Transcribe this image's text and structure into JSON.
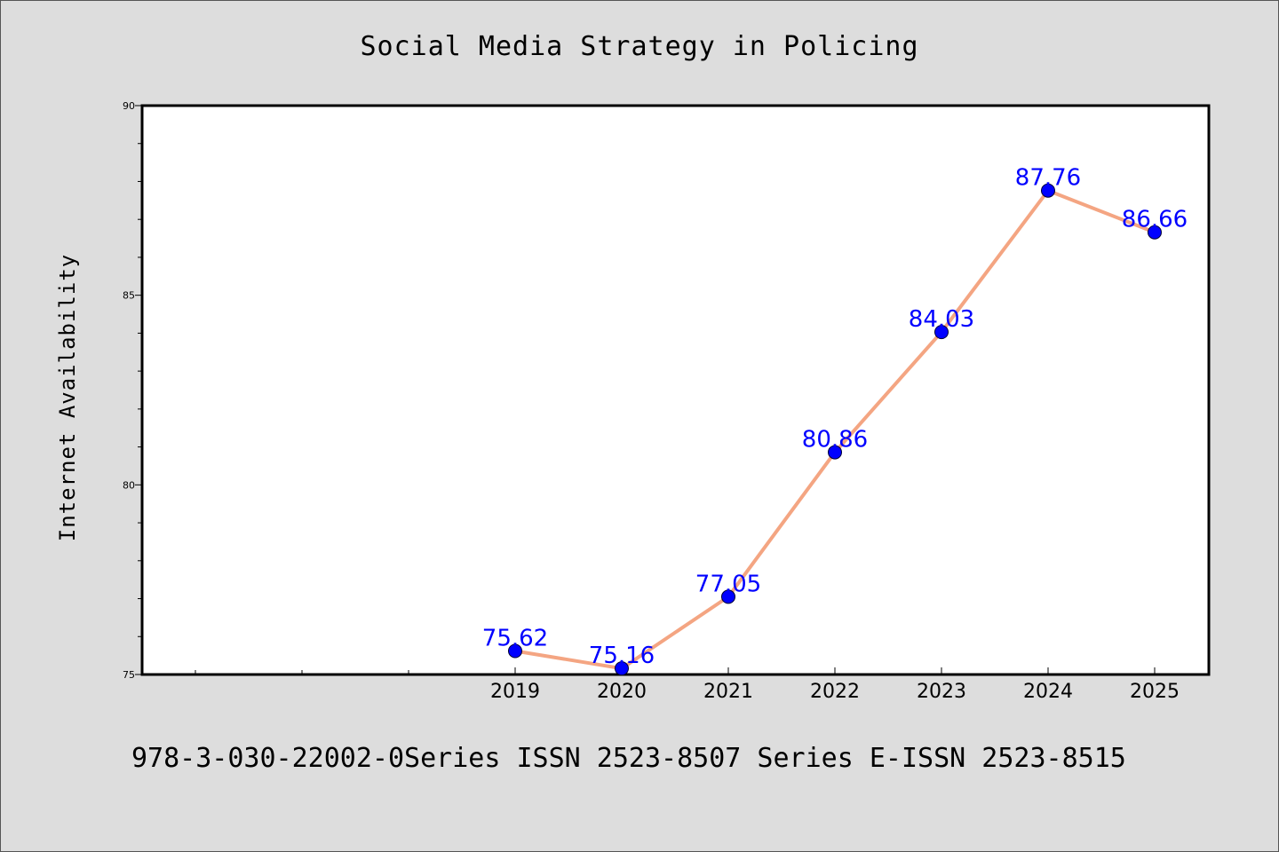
{
  "chart_data": {
    "type": "line",
    "title": "Social Media Strategy in Policing",
    "ylabel": "Internet Availability",
    "xlabel": "",
    "x": [
      "2019",
      "2020",
      "2021",
      "2022",
      "2023",
      "2024",
      "2025"
    ],
    "values": [
      75.62,
      75.16,
      77.05,
      80.86,
      84.03,
      87.76,
      86.66
    ],
    "data_labels": [
      "75.62",
      "75.16",
      "77.05",
      "80.86",
      "84.03",
      "87.76",
      "86.66"
    ],
    "ylim": [
      75,
      90
    ],
    "yticks": [
      "75",
      "80",
      "85",
      "90"
    ],
    "grid": false,
    "line_color": "#f4a582",
    "marker_color": "#0000ff",
    "label_color": "#0000ff"
  },
  "footer": {
    "text": "978-3-030-22002-0Series ISSN 2523-8507 Series E-ISSN 2523-8515"
  },
  "colors": {
    "background": "#dddddd",
    "plot_background": "#ffffff",
    "axis": "#000000"
  }
}
